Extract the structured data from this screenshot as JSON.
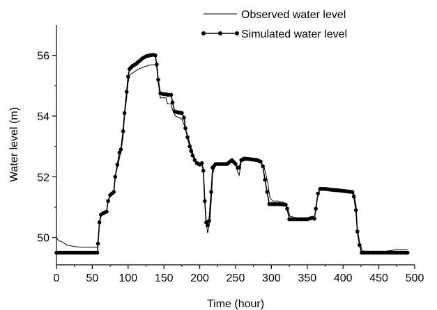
{
  "chart_data": {
    "type": "line",
    "xlabel": "Time (hour)",
    "ylabel": "Water level (m)",
    "xlim": [
      0,
      500
    ],
    "ylim": [
      49.1,
      57.0
    ],
    "xticks": [
      0,
      50,
      100,
      150,
      200,
      250,
      300,
      350,
      400,
      450,
      500
    ],
    "yticks": [
      50,
      52,
      54,
      56
    ],
    "grid": false,
    "legend_position": "top-right",
    "series": [
      {
        "name": "Observed water level",
        "style": "thin line",
        "color": "#000000",
        "points": [
          [
            0,
            50.0
          ],
          [
            3,
            49.9
          ],
          [
            8,
            49.85
          ],
          [
            15,
            49.75
          ],
          [
            25,
            49.7
          ],
          [
            35,
            49.68
          ],
          [
            45,
            49.68
          ],
          [
            57,
            49.68
          ],
          [
            58,
            49.8
          ],
          [
            60,
            50.5
          ],
          [
            63,
            50.75
          ],
          [
            70,
            50.85
          ],
          [
            72,
            51.2
          ],
          [
            76,
            51.4
          ],
          [
            80,
            51.55
          ],
          [
            82,
            52.0
          ],
          [
            86,
            52.4
          ],
          [
            90,
            52.85
          ],
          [
            93,
            53.3
          ],
          [
            95,
            54.0
          ],
          [
            98,
            54.6
          ],
          [
            100,
            55.1
          ],
          [
            102,
            55.35
          ],
          [
            108,
            55.45
          ],
          [
            115,
            55.55
          ],
          [
            122,
            55.62
          ],
          [
            130,
            55.68
          ],
          [
            138,
            55.7
          ],
          [
            140,
            55.6
          ],
          [
            142,
            55.1
          ],
          [
            145,
            54.6
          ],
          [
            150,
            54.6
          ],
          [
            153,
            54.6
          ],
          [
            155,
            54.4
          ],
          [
            160,
            54.4
          ],
          [
            162,
            54.2
          ],
          [
            166,
            54.0
          ],
          [
            175,
            53.9
          ],
          [
            180,
            53.6
          ],
          [
            185,
            53.2
          ],
          [
            190,
            52.8
          ],
          [
            195,
            52.5
          ],
          [
            200,
            52.4
          ],
          [
            203,
            52.4
          ],
          [
            205,
            52.3
          ],
          [
            207,
            51.2
          ],
          [
            209,
            50.5
          ],
          [
            211,
            50.15
          ],
          [
            214,
            50.5
          ],
          [
            216,
            51.2
          ],
          [
            218,
            52.1
          ],
          [
            222,
            52.4
          ],
          [
            230,
            52.45
          ],
          [
            240,
            52.45
          ],
          [
            245,
            52.5
          ],
          [
            250,
            52.45
          ],
          [
            253,
            52.15
          ],
          [
            255,
            52.05
          ],
          [
            258,
            52.5
          ],
          [
            265,
            52.55
          ],
          [
            275,
            52.55
          ],
          [
            285,
            52.5
          ],
          [
            290,
            52.3
          ],
          [
            295,
            51.8
          ],
          [
            298,
            51.3
          ],
          [
            302,
            51.2
          ],
          [
            310,
            51.2
          ],
          [
            318,
            51.15
          ],
          [
            322,
            51.0
          ],
          [
            326,
            50.7
          ],
          [
            335,
            50.65
          ],
          [
            350,
            50.65
          ],
          [
            360,
            50.65
          ],
          [
            362,
            50.9
          ],
          [
            365,
            51.4
          ],
          [
            368,
            51.6
          ],
          [
            380,
            51.6
          ],
          [
            395,
            51.55
          ],
          [
            410,
            51.5
          ],
          [
            415,
            51.45
          ],
          [
            418,
            51.1
          ],
          [
            420,
            50.3
          ],
          [
            423,
            49.85
          ],
          [
            427,
            49.55
          ],
          [
            440,
            49.55
          ],
          [
            460,
            49.55
          ],
          [
            475,
            49.6
          ],
          [
            490,
            49.6
          ]
        ]
      },
      {
        "name": "Simulated water level",
        "style": "line with filled circle markers",
        "color": "#000000",
        "points": [
          [
            0,
            49.5
          ],
          [
            10,
            49.5
          ],
          [
            20,
            49.5
          ],
          [
            30,
            49.5
          ],
          [
            40,
            49.5
          ],
          [
            50,
            49.5
          ],
          [
            57,
            49.5
          ],
          [
            58,
            49.8
          ],
          [
            60,
            50.5
          ],
          [
            62,
            50.75
          ],
          [
            65,
            50.8
          ],
          [
            70,
            50.85
          ],
          [
            72,
            51.2
          ],
          [
            75,
            51.4
          ],
          [
            80,
            51.5
          ],
          [
            82,
            52.0
          ],
          [
            85,
            52.4
          ],
          [
            88,
            52.8
          ],
          [
            90,
            52.9
          ],
          [
            93,
            53.5
          ],
          [
            95,
            54.1
          ],
          [
            98,
            54.8
          ],
          [
            100,
            55.3
          ],
          [
            102,
            55.55
          ],
          [
            106,
            55.65
          ],
          [
            110,
            55.7
          ],
          [
            115,
            55.8
          ],
          [
            120,
            55.9
          ],
          [
            125,
            55.97
          ],
          [
            130,
            56.0
          ],
          [
            135,
            56.02
          ],
          [
            138,
            56.0
          ],
          [
            140,
            55.7
          ],
          [
            142,
            55.2
          ],
          [
            145,
            54.75
          ],
          [
            150,
            54.72
          ],
          [
            153,
            54.72
          ],
          [
            155,
            54.7
          ],
          [
            160,
            54.7
          ],
          [
            162,
            54.45
          ],
          [
            165,
            54.15
          ],
          [
            170,
            54.12
          ],
          [
            175,
            54.1
          ],
          [
            178,
            53.95
          ],
          [
            180,
            53.6
          ],
          [
            183,
            53.3
          ],
          [
            186,
            53.0
          ],
          [
            190,
            52.7
          ],
          [
            193,
            52.55
          ],
          [
            196,
            52.45
          ],
          [
            200,
            52.4
          ],
          [
            203,
            52.45
          ],
          [
            205,
            52.2
          ],
          [
            207,
            51.2
          ],
          [
            209,
            50.5
          ],
          [
            211,
            50.4
          ],
          [
            213,
            50.55
          ],
          [
            216,
            51.5
          ],
          [
            218,
            52.3
          ],
          [
            222,
            52.42
          ],
          [
            230,
            52.42
          ],
          [
            238,
            52.42
          ],
          [
            245,
            52.55
          ],
          [
            250,
            52.42
          ],
          [
            253,
            52.3
          ],
          [
            255,
            52.3
          ],
          [
            258,
            52.55
          ],
          [
            262,
            52.6
          ],
          [
            270,
            52.58
          ],
          [
            280,
            52.55
          ],
          [
            285,
            52.5
          ],
          [
            288,
            52.35
          ],
          [
            291,
            51.9
          ],
          [
            294,
            51.5
          ],
          [
            297,
            51.1
          ],
          [
            300,
            51.1
          ],
          [
            310,
            51.1
          ],
          [
            320,
            51.08
          ],
          [
            322,
            50.95
          ],
          [
            325,
            50.6
          ],
          [
            335,
            50.6
          ],
          [
            350,
            50.6
          ],
          [
            357,
            50.65
          ],
          [
            360,
            50.62
          ],
          [
            362,
            50.95
          ],
          [
            365,
            51.45
          ],
          [
            368,
            51.6
          ],
          [
            375,
            51.6
          ],
          [
            385,
            51.57
          ],
          [
            395,
            51.55
          ],
          [
            405,
            51.52
          ],
          [
            413,
            51.5
          ],
          [
            415,
            51.35
          ],
          [
            418,
            50.9
          ],
          [
            420,
            50.2
          ],
          [
            423,
            49.75
          ],
          [
            426,
            49.5
          ],
          [
            435,
            49.5
          ],
          [
            450,
            49.5
          ],
          [
            465,
            49.5
          ],
          [
            480,
            49.5
          ],
          [
            490,
            49.5
          ]
        ]
      }
    ]
  }
}
